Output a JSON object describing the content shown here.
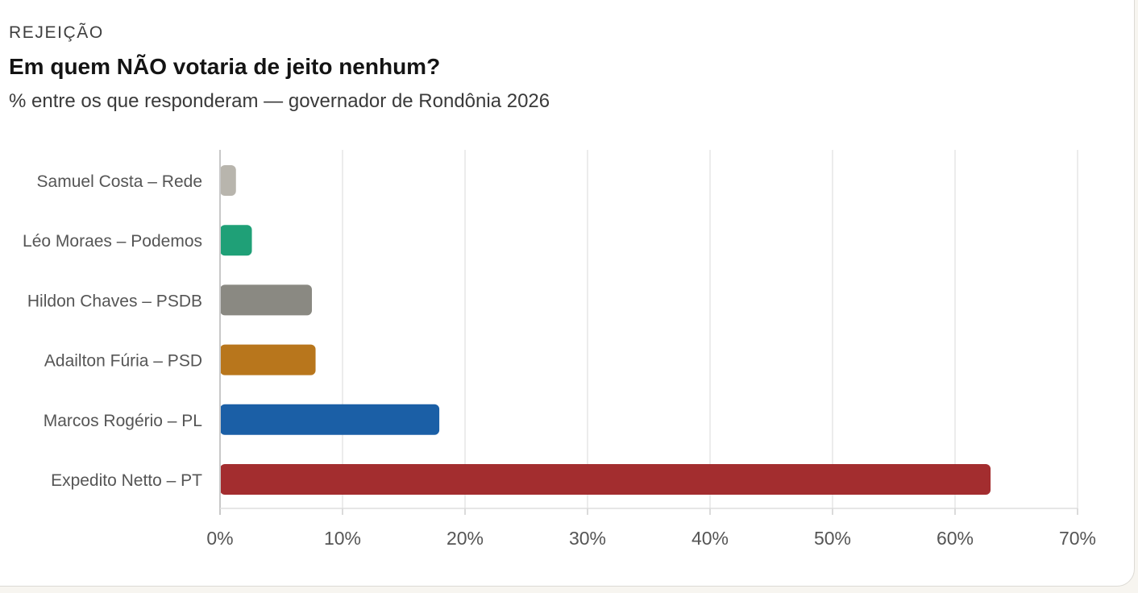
{
  "header": {
    "eyebrow": "REJEIÇÃO",
    "title": "Em quem NÃO votaria de jeito nenhum?",
    "subtitle": "% entre os que responderam — governador de Rondônia 2026"
  },
  "chart_data": {
    "type": "bar",
    "orientation": "horizontal",
    "title": "Em quem NÃO votaria de jeito nenhum?",
    "subtitle": "% entre os que responderam — governador de Rondônia 2026",
    "xlabel": "",
    "ylabel": "",
    "xlim": [
      0,
      70
    ],
    "x_ticks": [
      0,
      10,
      20,
      30,
      40,
      50,
      60,
      70
    ],
    "x_tick_labels": [
      "0%",
      "10%",
      "20%",
      "30%",
      "40%",
      "50%",
      "60%",
      "70%"
    ],
    "grid": true,
    "categories": [
      "Samuel Costa – Rede",
      "Léo Moraes – Podemos",
      "Hildon Chaves – PSDB",
      "Adailton Fúria – PSD",
      "Marcos Rogério – PL",
      "Expedito Netto – PT"
    ],
    "values": [
      1.3,
      2.6,
      7.5,
      7.8,
      17.9,
      62.9
    ],
    "colors": [
      "#b8b5ad",
      "#1fa077",
      "#8a8982",
      "#b8761c",
      "#1b5fa6",
      "#a32d2f"
    ]
  }
}
